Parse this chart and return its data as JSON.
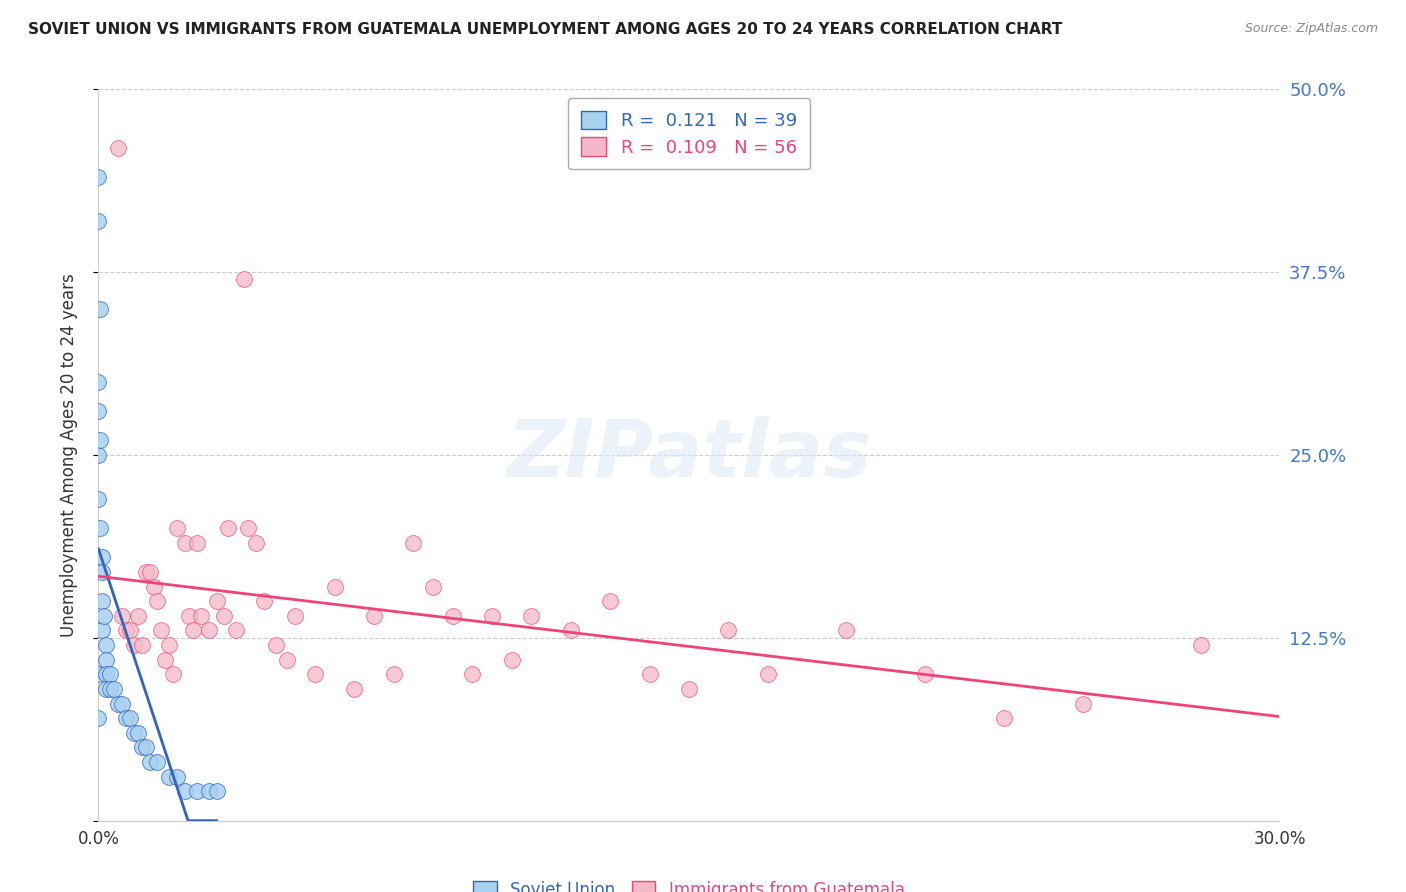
{
  "title": "SOVIET UNION VS IMMIGRANTS FROM GUATEMALA UNEMPLOYMENT AMONG AGES 20 TO 24 YEARS CORRELATION CHART",
  "source": "Source: ZipAtlas.com",
  "ylabel": "Unemployment Among Ages 20 to 24 years",
  "r_soviet": 0.121,
  "n_soviet": 39,
  "r_guatemala": 0.109,
  "n_guatemala": 56,
  "color_soviet": "#a8d0f0",
  "color_guatemala": "#f5b8c8",
  "color_soviet_line": "#3366bb",
  "color_guatemala_line": "#ee4477",
  "color_soviet_label": "#3366bb",
  "color_guatemala_label": "#ee4477",
  "color_right_axis": "#4477cc",
  "xmin": 0.0,
  "xmax": 0.3,
  "ymin": 0.0,
  "ymax": 0.5,
  "yticks": [
    0.0,
    0.125,
    0.25,
    0.375,
    0.5
  ],
  "ytick_labels": [
    "",
    "12.5%",
    "25.0%",
    "37.5%",
    "50.0%"
  ],
  "xticks": [
    0.0,
    0.05,
    0.1,
    0.15,
    0.2,
    0.25,
    0.3
  ],
  "xtick_labels": [
    "0.0%",
    "",
    "",
    "",
    "",
    "",
    "30.0%"
  ],
  "soviet_x": [
    0.0,
    0.0,
    0.0,
    0.0,
    0.0,
    0.0,
    0.0,
    0.0,
    0.0005,
    0.0005,
    0.0005,
    0.001,
    0.001,
    0.001,
    0.001,
    0.0015,
    0.002,
    0.002,
    0.002,
    0.002,
    0.003,
    0.003,
    0.004,
    0.005,
    0.006,
    0.007,
    0.008,
    0.009,
    0.01,
    0.011,
    0.012,
    0.013,
    0.015,
    0.018,
    0.02,
    0.022,
    0.025,
    0.028,
    0.03
  ],
  "soviet_y": [
    0.44,
    0.41,
    0.3,
    0.28,
    0.25,
    0.22,
    0.1,
    0.07,
    0.35,
    0.26,
    0.2,
    0.18,
    0.17,
    0.15,
    0.13,
    0.14,
    0.12,
    0.11,
    0.1,
    0.09,
    0.1,
    0.09,
    0.09,
    0.08,
    0.08,
    0.07,
    0.07,
    0.06,
    0.06,
    0.05,
    0.05,
    0.04,
    0.04,
    0.03,
    0.03,
    0.02,
    0.02,
    0.02,
    0.02
  ],
  "guatemala_x": [
    0.005,
    0.006,
    0.007,
    0.008,
    0.009,
    0.01,
    0.011,
    0.012,
    0.013,
    0.014,
    0.015,
    0.016,
    0.017,
    0.018,
    0.019,
    0.02,
    0.022,
    0.023,
    0.024,
    0.025,
    0.026,
    0.028,
    0.03,
    0.032,
    0.033,
    0.035,
    0.037,
    0.038,
    0.04,
    0.042,
    0.045,
    0.048,
    0.05,
    0.055,
    0.06,
    0.065,
    0.07,
    0.075,
    0.08,
    0.085,
    0.09,
    0.095,
    0.1,
    0.105,
    0.11,
    0.12,
    0.13,
    0.14,
    0.15,
    0.16,
    0.17,
    0.19,
    0.21,
    0.23,
    0.25,
    0.28
  ],
  "guatemala_y": [
    0.46,
    0.14,
    0.13,
    0.13,
    0.12,
    0.14,
    0.12,
    0.17,
    0.17,
    0.16,
    0.15,
    0.13,
    0.11,
    0.12,
    0.1,
    0.2,
    0.19,
    0.14,
    0.13,
    0.19,
    0.14,
    0.13,
    0.15,
    0.14,
    0.2,
    0.13,
    0.37,
    0.2,
    0.19,
    0.15,
    0.12,
    0.11,
    0.14,
    0.1,
    0.16,
    0.09,
    0.14,
    0.1,
    0.19,
    0.16,
    0.14,
    0.1,
    0.14,
    0.11,
    0.14,
    0.13,
    0.15,
    0.1,
    0.09,
    0.13,
    0.1,
    0.13,
    0.1,
    0.07,
    0.08,
    0.12
  ]
}
